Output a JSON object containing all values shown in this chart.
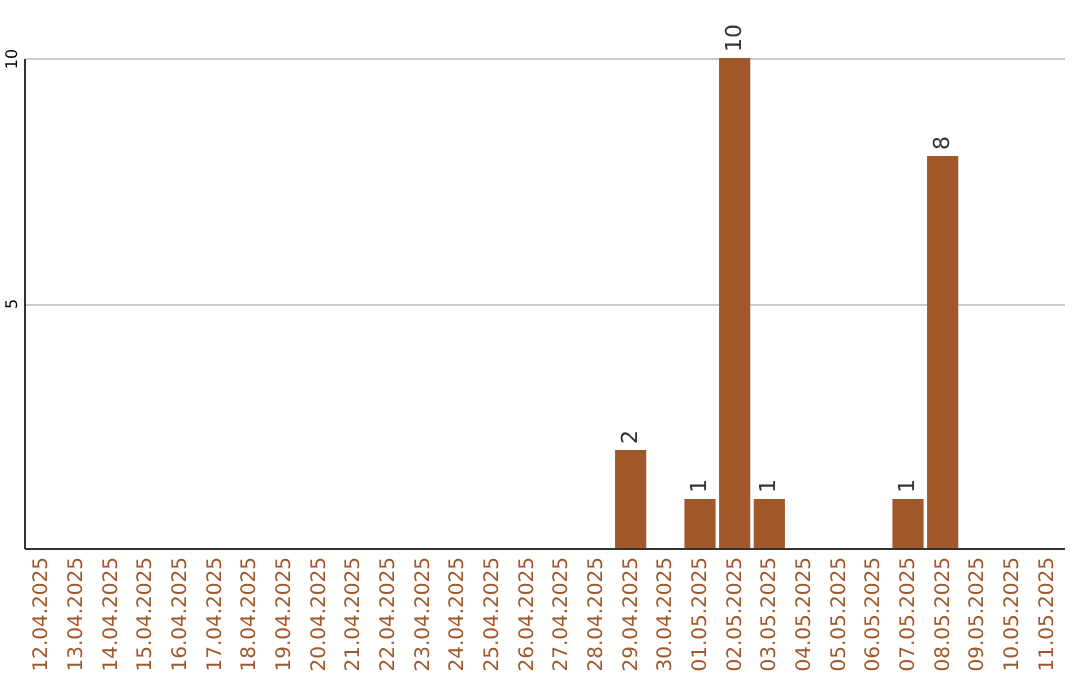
{
  "chart_data": {
    "type": "bar",
    "categories": [
      "12.04.2025",
      "13.04.2025",
      "14.04.2025",
      "15.04.2025",
      "16.04.2025",
      "17.04.2025",
      "18.04.2025",
      "19.04.2025",
      "20.04.2025",
      "21.04.2025",
      "22.04.2025",
      "23.04.2025",
      "24.04.2025",
      "25.04.2025",
      "26.04.2025",
      "27.04.2025",
      "28.04.2025",
      "29.04.2025",
      "30.04.2025",
      "01.05.2025",
      "02.05.2025",
      "03.05.2025",
      "04.05.2025",
      "05.05.2025",
      "06.05.2025",
      "07.05.2025",
      "08.05.2025",
      "09.05.2025",
      "10.05.2025",
      "11.05.2025"
    ],
    "values": [
      0,
      0,
      0,
      0,
      0,
      0,
      0,
      0,
      0,
      0,
      0,
      0,
      0,
      0,
      0,
      0,
      0,
      2,
      0,
      1,
      10,
      1,
      0,
      0,
      0,
      1,
      8,
      0,
      0,
      0
    ],
    "value_labels": [
      null,
      null,
      null,
      null,
      null,
      null,
      null,
      null,
      null,
      null,
      null,
      null,
      null,
      null,
      null,
      null,
      null,
      "2",
      null,
      "1",
      "10",
      "1",
      null,
      null,
      null,
      "1",
      "8",
      null,
      null,
      null
    ],
    "color": "#a0582a",
    "ylim": [
      0,
      10
    ],
    "yticks": [
      5,
      10
    ],
    "grid": "y"
  }
}
